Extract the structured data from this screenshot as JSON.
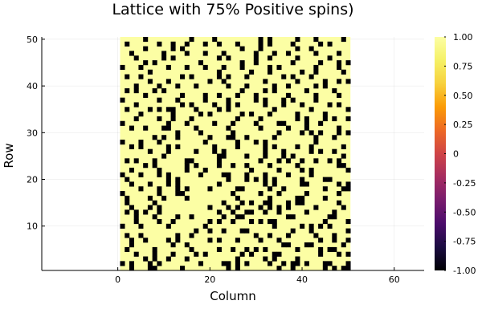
{
  "chart_data": {
    "type": "heatmap",
    "title": "Lattice with 75% Positive spins)",
    "xlabel": "Column",
    "ylabel": "Row",
    "xlim": [
      -16.5,
      66.5
    ],
    "ylim": [
      0.5,
      50.5
    ],
    "x_ticks": [
      0,
      20,
      40,
      60
    ],
    "y_ticks": [
      10,
      20,
      30,
      40,
      50
    ],
    "grid": true,
    "colormap": "inferno",
    "colors": {
      "positive": "#fcfea4",
      "negative": "#000004"
    },
    "colorbar": {
      "min": -1.0,
      "max": 1.0,
      "ticks": [
        "1.00",
        "0.75",
        "0.50",
        "0.25",
        "0",
        "-0.25",
        "-0.50",
        "-0.75",
        "-1.00"
      ]
    },
    "grid_size": {
      "rows": 50,
      "cols": 50
    },
    "values_note_rows_bottom_to_top": "each string is one row, left to right; + = +1 spin, - = -1 spin",
    "rows": [
      "++-+++--+++++-+++++++++-+-++++++++-++-++++++-+-+--",
      "-+-+++-+-++++++++-++++--+-+-++++-++-+--+-+++--+++-",
      "+++++-+-++-+++-++++++++++-+++++-+-++++-+++++++++++",
      "+++-+++-+++-++++-+-+++++++-+-++++--++++++++-+++-+-",
      "+-+++++-+++++++-+++++-++-++-+-+-++++++-++++-+--+++",
      "++-++++++++-++-++++++++++++++++++++--+++--++++++-+",
      "++-++-++++-+-++++++-+-+++-++++-+++-++++++++-++-++-",
      "+-++-+++++++-++-+++++++++++++-++-+++-+++++-+++-+++",
      "++++++++++++++++-++-++-+++--+++++++++-+++-+++++++-",
      "-+++-+++++-+++++++-++++++++++++++-+++++-+-+-+-++++",
      "+++-++++-++-+++++++-+-++-+++-+-+--++++++++++-++++-",
      "+++-+++-++++-++-++++++-++--+++++++++--+++++++--+++",
      "+-+-+-++-++++++++++++-++-++--++-++-+++++-+++++-+++",
      "++-+++-+-++++++++++-+++-+-++++-+-+-+-+++++-+++++-+",
      "+-+++++-++++++++++++++-+++-+-++--+++-+--+++++++-++",
      "+-++++-++-++++-++++++++++-++++++-+++++--++++-+++++",
      "-+++++++-+++--++++++++++-+++++-+++-+++++-++++++-++",
      "++++-+++-+++-+-++++-+++++--+++++-++-++++++++-+++--",
      "++-+++-+++-+-++++++++-+++++++++-+-+++++--++++++-+-",
      "+-++++++++-+-++++++++++-+++-+-+-+-+++++-++++--++++",
      "-+++-+++-+-++++++-++++--+++-+++-++++-++++-++++++++",
      "++-+++++-+++++-+++-+++++++++-+++++-++++-+-+++++++-",
      "+++++-+-++++++-+-++++-++-++-++++-+++++-++++++++--+",
      "+-+-+++-++++++--+++++-++++++++-+++-+-++-++-++-+-++",
      "+++++++++-+++++++++++--++++-+++-+++-+-++++++++++-+",
      "++++++-+++-+++++-+++-+-++++++++-+++-+++++-+-++-+++",
      "++-+-+++++-+-+++++++-++++-+++++-+-++++-++-++++++-+",
      "-+++-+++-+++++++++-++++++-+++-+-++++++++++-+++++++",
      "+++++++-+-++-++++++-+++--++-+++++-++++++++-+++-+++",
      "++++++++++++-++++-++++++-+++++++++-++++-+-+-+++-+-",
      "++-++-+++--+++++-++++++-++++++-+++++-+++-++++++-++",
      "-+++++++++-+++-+++++-+++-++++-++++--++++-++-++++++",
      "+++-++++-++-+++-+++++++++-++++-+++++++-+-+++-+-++-",
      "++++-++++++-+++++-+-++++++-+-+++-+++++-+++++-+++++",
      "+-++++-+-+--++++-++++-+-+++++++++-+++++++-+++++++-",
      "+++-+++++++++-+-++++-++-+-+++++-+++-+++-+++++-+-++",
      "-+++++++-+++-+++++-++++-+++++-+-+++-+-++++-+++++++",
      "+++++-+++++++-++++-++-+++-+++-++++++-+++++-++++-++",
      "+-+-+++-+-++++++++++++++++-++++-+-++++++-+++++-+++",
      "+++-++++-+++-+++-++++++-+++-+++++-++-+++++-+-+++++",
      "++++++-+++-++++++++-++-++++++++-++++++-+++++-++-+-",
      "+-++-++++++++-+-+++++-+-+++-+++++++-+-+++-++++++++",
      "++++++-++++++++++++++-++++++-+++-++++++-++-+++++-+",
      "-+++-+++++-+++-+++-+++-+++-+++++-+-+++++++-++++-++",
      "+++++-+-+++++++++-++++++++-++-+++++++-+++++-+++-+-",
      "+++-+++++-+-+++++++++-+-+++++-++-+++++-++++++-++++",
      "++-++++++-++++-+++-+++-++++++-+++-++-+++++-++++-++",
      "+++++-+++++-+-++++++++++++-+++-+++++++-++-++++++++",
      "+-++++++-++-++-+++-++-+++-++++-+-++++-+++++-+-++++",
      "+++++-+++++++++-++++-+++++++++-+-+++++-+++-+++++-+"
    ]
  }
}
